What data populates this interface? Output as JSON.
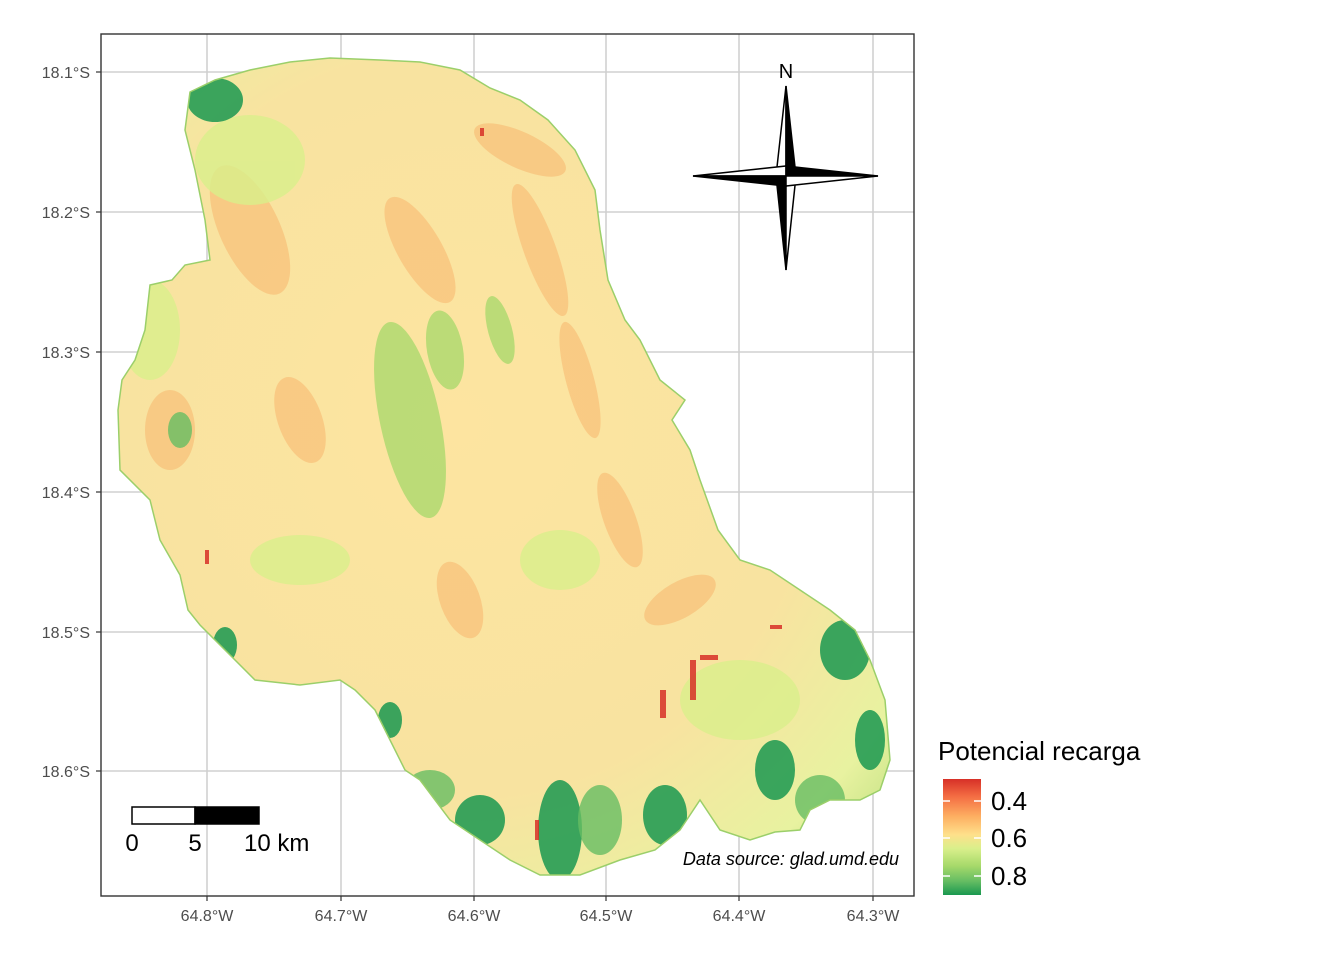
{
  "map": {
    "lat_ticks": [
      "18.1°S",
      "18.2°S",
      "18.3°S",
      "18.4°S",
      "18.5°S",
      "18.6°S"
    ],
    "lon_ticks": [
      "64.8°W",
      "64.7°W",
      "64.6°W",
      "64.5°W",
      "64.4°W",
      "64.3°W"
    ],
    "north_label": "N",
    "scale_bar": {
      "labels": [
        "0",
        "5",
        "10 km"
      ]
    },
    "credit": "Data source: glad.umd.edu",
    "colors": {
      "low": "#d73027",
      "mid": "#fee08b",
      "high": "#1a9850",
      "panel_border": "#333333",
      "grid": "#d0d0d0"
    }
  },
  "legend": {
    "title": "Potencial recarga",
    "labels": [
      "0.4",
      "0.6",
      "0.8"
    ],
    "palette": [
      "#d73027",
      "#f46d43",
      "#fdae61",
      "#fee08b",
      "#d9ef8b",
      "#a6d96a",
      "#66bd63",
      "#1a9850"
    ]
  }
}
